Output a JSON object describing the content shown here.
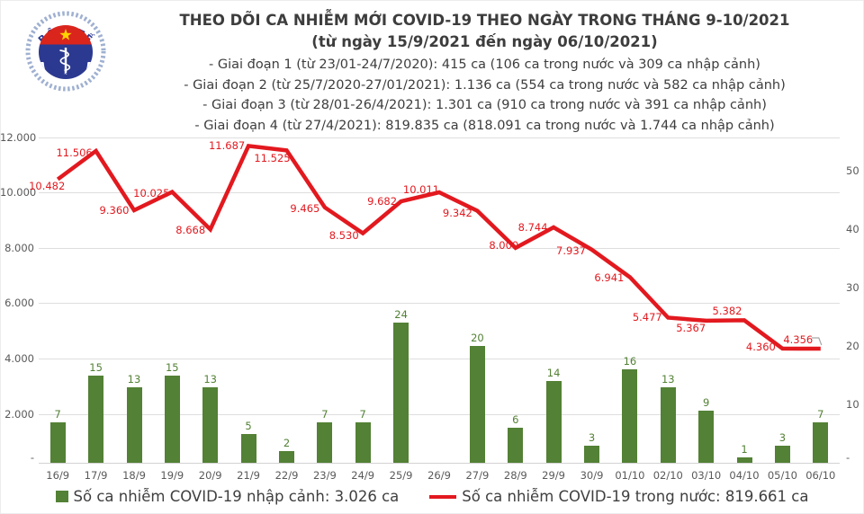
{
  "logo": {
    "top_text": "BỘ Y TẾ",
    "bottom_text": "MINISTRY OF HEALTH"
  },
  "header": {
    "title": "THEO DÕI CA NHIỄM MỚI COVID-19 THEO NGÀY TRONG THÁNG 9-10/2021",
    "subtitle": "(từ ngày 15/9/2021 đến ngày 06/10/2021)",
    "phases": [
      "- Giai đoạn 1 (từ 23/01-24/7/2020): 415 ca (106 ca trong nước và 309 ca nhập cảnh)",
      "- Giai đoạn 2 (từ 25/7/2020-27/01/2021): 1.136 ca (554 ca trong nước và 582 ca nhập cảnh)",
      "- Giai đoạn 3 (từ 28/01-26/4/2021): 1.301 ca (910 ca trong nước và 391 ca nhập cảnh)",
      "- Giai đoạn 4 (từ 27/4/2021): 819.835 ca (818.091 ca trong nước và 1.744 ca nhập cảnh)"
    ]
  },
  "chart_data": {
    "type": "combo-bar-line",
    "categories": [
      "16/9",
      "17/9",
      "18/9",
      "19/9",
      "20/9",
      "21/9",
      "22/9",
      "23/9",
      "24/9",
      "25/9",
      "26/9",
      "27/9",
      "28/9",
      "29/9",
      "30/9",
      "01/10",
      "02/10",
      "03/10",
      "04/10",
      "05/10",
      "06/10"
    ],
    "series": [
      {
        "name": "Số ca nhiễm COVID-19 nhập cảnh",
        "type": "bar",
        "axis": "right",
        "color": "#538135",
        "values": [
          7,
          15,
          13,
          15,
          13,
          5,
          2,
          7,
          7,
          24,
          0,
          20,
          6,
          14,
          3,
          16,
          13,
          9,
          1,
          3,
          7
        ]
      },
      {
        "name": "Số ca nhiễm COVID-19 trong nước",
        "type": "line",
        "axis": "left",
        "color": "#e2191f",
        "values": [
          10482,
          11506,
          9360,
          10025,
          8668,
          11687,
          11525,
          9465,
          8530,
          9682,
          10011,
          9342,
          8000,
          8744,
          7937,
          6941,
          5477,
          5367,
          5382,
          4360,
          4356
        ],
        "labels": [
          "10.482",
          "11.506",
          "9.360",
          "10.025",
          "8.668",
          "11.687",
          "11.525",
          "9.465",
          "8.530",
          "9.682",
          "10.011",
          "9.342",
          "8.000",
          "8.744",
          "7.937",
          "6.941",
          "5.477",
          "5.367",
          "5.382",
          "4.360",
          "4.356"
        ]
      }
    ],
    "left_axis": {
      "tick_labels": [
        "12.000",
        "10.000",
        "8.000",
        "6.000",
        "4.000",
        "2.000",
        "-"
      ],
      "tick_values": [
        12000,
        10000,
        8000,
        6000,
        4000,
        2000,
        0
      ],
      "range": [
        0,
        12000
      ]
    },
    "right_axis": {
      "tick_labels": [
        "50",
        "40",
        "30",
        "20",
        "10",
        "-"
      ],
      "tick_values": [
        50,
        40,
        30,
        20,
        10,
        0
      ],
      "range": [
        0,
        55
      ]
    },
    "grid": true,
    "legend_position": "bottom"
  },
  "legend": [
    {
      "swatch": "bar",
      "label": "Số ca nhiễm COVID-19 nhập cảnh: 3.026 ca"
    },
    {
      "swatch": "line",
      "label": "Số ca nhiễm COVID-19 trong nước: 819.661 ca"
    }
  ]
}
